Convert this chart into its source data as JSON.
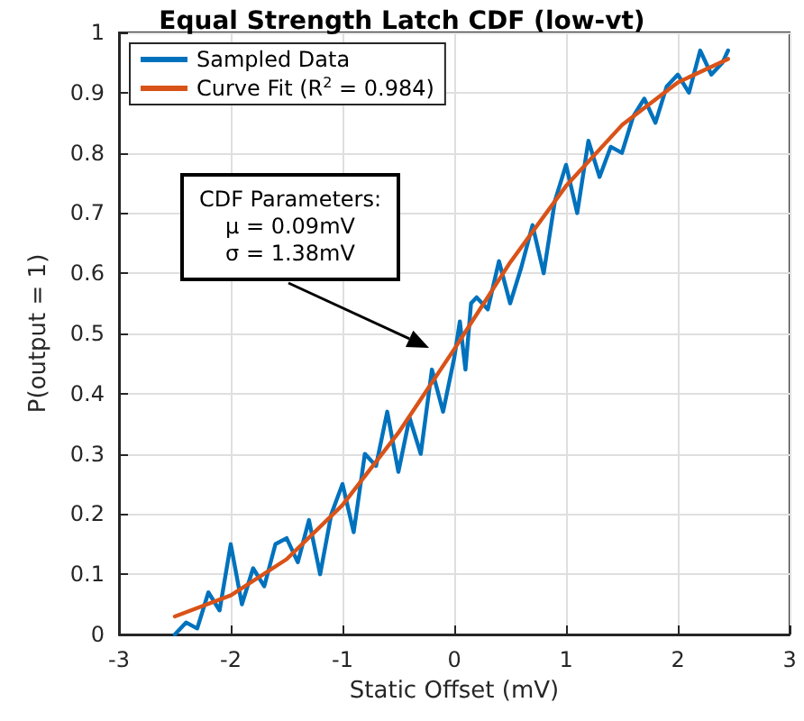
{
  "chart_data": {
    "type": "line",
    "title": "Equal Strength Latch CDF (low-vt)",
    "xlabel": "Static Offset (mV)",
    "ylabel": "P(output = 1)",
    "xlim": [
      -3,
      3
    ],
    "xticks": [
      -3,
      -2,
      -1,
      0,
      1,
      2,
      3
    ],
    "ylim": [
      0,
      1
    ],
    "yticks": [
      0,
      0.1,
      0.2,
      0.3,
      0.4,
      0.5,
      0.6,
      0.7,
      0.8,
      0.9,
      1
    ],
    "grid": true,
    "legend": "top left",
    "line_style": "solid",
    "marker": "none",
    "annotations": [
      "CDF Parameters:\nμ = 0.09mV\nσ = 1.38mV"
    ],
    "series": [
      {
        "name": "Sampled Data",
        "color": "#0072bd",
        "x": [
          -2.5,
          -2.4,
          -2.3,
          -2.2,
          -2.1,
          -2.0,
          -1.9,
          -1.8,
          -1.7,
          -1.6,
          -1.5,
          -1.4,
          -1.3,
          -1.2,
          -1.1,
          -1.0,
          -0.9,
          -0.8,
          -0.7,
          -0.6,
          -0.5,
          -0.4,
          -0.3,
          -0.2,
          -0.1,
          0.0,
          0.05,
          0.1,
          0.15,
          0.2,
          0.3,
          0.4,
          0.5,
          0.6,
          0.7,
          0.8,
          0.9,
          1.0,
          1.1,
          1.2,
          1.3,
          1.4,
          1.5,
          1.6,
          1.7,
          1.8,
          1.9,
          2.0,
          2.1,
          2.2,
          2.3,
          2.4,
          2.45
        ],
        "values": [
          0.0,
          0.02,
          0.01,
          0.07,
          0.04,
          0.15,
          0.05,
          0.11,
          0.08,
          0.15,
          0.16,
          0.12,
          0.19,
          0.1,
          0.2,
          0.25,
          0.17,
          0.3,
          0.28,
          0.37,
          0.27,
          0.36,
          0.3,
          0.44,
          0.37,
          0.46,
          0.52,
          0.44,
          0.55,
          0.56,
          0.54,
          0.62,
          0.55,
          0.61,
          0.68,
          0.6,
          0.72,
          0.78,
          0.7,
          0.82,
          0.76,
          0.81,
          0.8,
          0.86,
          0.89,
          0.85,
          0.91,
          0.93,
          0.9,
          0.97,
          0.93,
          0.95,
          0.97
        ]
      },
      {
        "name": "Curve Fit (R$^{2}$ = 0.984)",
        "color": "#d95319",
        "x": [
          -2.5,
          -2.0,
          -1.5,
          -1.0,
          -0.5,
          0.0,
          0.5,
          1.0,
          1.5,
          2.0,
          2.45
        ],
        "values": [
          0.03,
          0.065,
          0.125,
          0.215,
          0.335,
          0.474,
          0.618,
          0.745,
          0.846,
          0.917,
          0.956
        ]
      }
    ]
  }
}
